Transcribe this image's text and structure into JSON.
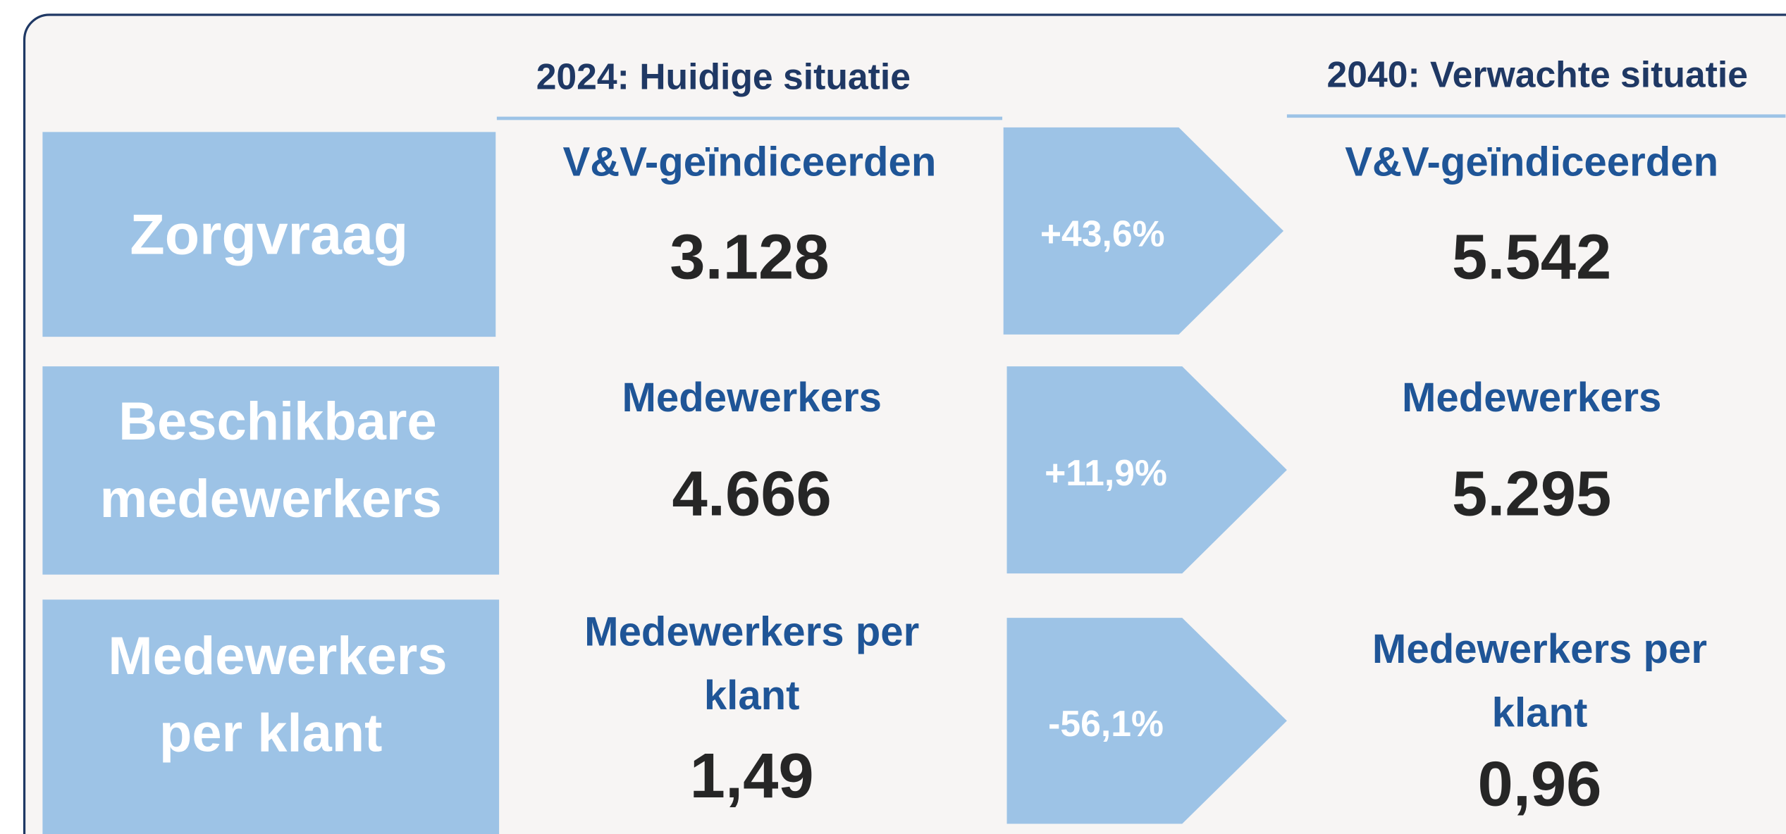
{
  "header": {
    "current": "2024: Huidige situatie",
    "future": "2040: Verwachte situatie"
  },
  "rows": [
    {
      "label": [
        "Zorgvraag"
      ],
      "current": {
        "label": [
          "V&V-geïndiceerden"
        ],
        "value": "3.128"
      },
      "change": "+43,6%",
      "future": {
        "label": [
          "V&V-geïndiceerden"
        ],
        "value": "5.542"
      }
    },
    {
      "label": [
        "Beschikbare",
        "medewerkers"
      ],
      "current": {
        "label": [
          "Medewerkers"
        ],
        "value": "4.666"
      },
      "change": "+11,9%",
      "future": {
        "label": [
          "Medewerkers"
        ],
        "value": "5.295"
      }
    },
    {
      "label": [
        "Medewerkers",
        "per klant"
      ],
      "current": {
        "label": [
          "Medewerkers per",
          "klant"
        ],
        "value": "1,49"
      },
      "change": "-56,1%",
      "future": {
        "label": [
          "Medewerkers per",
          "klant"
        ],
        "value": "0,96"
      }
    }
  ]
}
